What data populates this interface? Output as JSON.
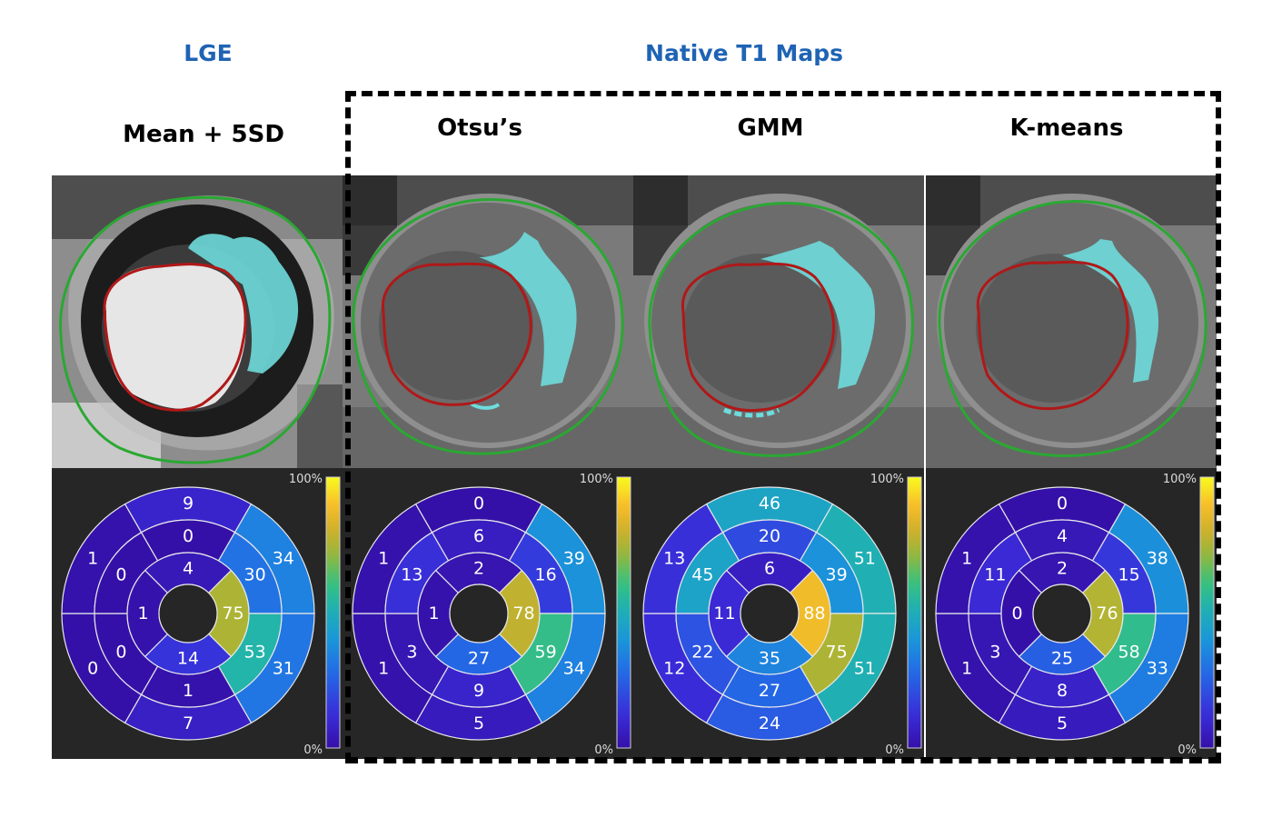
{
  "headers": {
    "lge": "LGE",
    "native": "Native T1 Maps",
    "columns": [
      "Mean + 5SD",
      "Otsu’s",
      "GMM",
      "K-means"
    ]
  },
  "colorbar": {
    "max_label": "100%",
    "min_label": "0%"
  },
  "colors": {
    "header_blue": "#1f63b4",
    "endocardium_contour": "#b01818",
    "epicardium_contour": "#2aa832",
    "scar_overlay": "#6fdcdc",
    "panel_background": "#262626"
  },
  "bullseyes": [
    {
      "name": "Mean + 5SD",
      "basal": [
        9,
        34,
        31,
        7,
        0,
        1
      ],
      "mid": [
        0,
        30,
        53,
        1,
        0,
        0
      ],
      "apical": [
        4,
        75,
        14,
        1
      ]
    },
    {
      "name": "Otsu’s",
      "basal": [
        0,
        39,
        34,
        5,
        1,
        1
      ],
      "mid": [
        6,
        16,
        59,
        9,
        3,
        13
      ],
      "apical": [
        2,
        78,
        27,
        1
      ]
    },
    {
      "name": "GMM",
      "basal": [
        46,
        51,
        51,
        24,
        12,
        13
      ],
      "mid": [
        20,
        39,
        75,
        27,
        22,
        45
      ],
      "apical": [
        6,
        88,
        35,
        11
      ]
    },
    {
      "name": "K-means",
      "basal": [
        0,
        38,
        33,
        5,
        1,
        1
      ],
      "mid": [
        4,
        15,
        58,
        8,
        3,
        11
      ],
      "apical": [
        2,
        76,
        25,
        0
      ]
    }
  ]
}
